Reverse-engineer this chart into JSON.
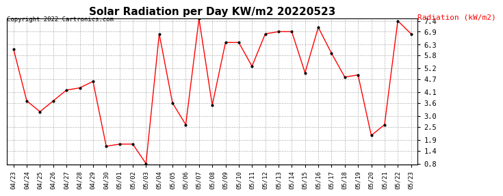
{
  "title": "Solar Radiation per Day KW/m2 20220523",
  "copyright": "Copyright 2022 Cartronics.com",
  "legend_label": "Radiation (kW/m2)",
  "x_labels": [
    "04/23",
    "04/24",
    "04/25",
    "04/26",
    "04/27",
    "04/28",
    "04/29",
    "04/30",
    "05/01",
    "05/02",
    "05/03",
    "05/04",
    "05/05",
    "05/06",
    "05/07",
    "05/08",
    "05/09",
    "05/10",
    "05/11",
    "05/12",
    "05/13",
    "05/14",
    "05/15",
    "05/16",
    "05/17",
    "05/18",
    "05/19",
    "05/20",
    "05/21",
    "05/22",
    "05/23"
  ],
  "y_values": [
    6.1,
    3.7,
    3.2,
    3.7,
    4.2,
    4.3,
    4.6,
    1.6,
    1.7,
    1.7,
    0.8,
    6.8,
    3.6,
    2.6,
    7.5,
    3.5,
    6.4,
    6.4,
    5.3,
    6.8,
    6.9,
    6.9,
    5.0,
    7.1,
    5.9,
    4.8,
    4.9,
    2.1,
    2.6,
    7.4,
    6.8
  ],
  "line_color": "#FF0000",
  "marker_color": "#000000",
  "background_color": "#FFFFFF",
  "grid_color": "#AAAAAA",
  "ylim_min": 0.8,
  "ylim_max": 7.4,
  "yticks": [
    0.8,
    1.4,
    1.9,
    2.5,
    3.0,
    3.6,
    4.1,
    4.7,
    5.2,
    5.8,
    6.3,
    6.9,
    7.4
  ]
}
